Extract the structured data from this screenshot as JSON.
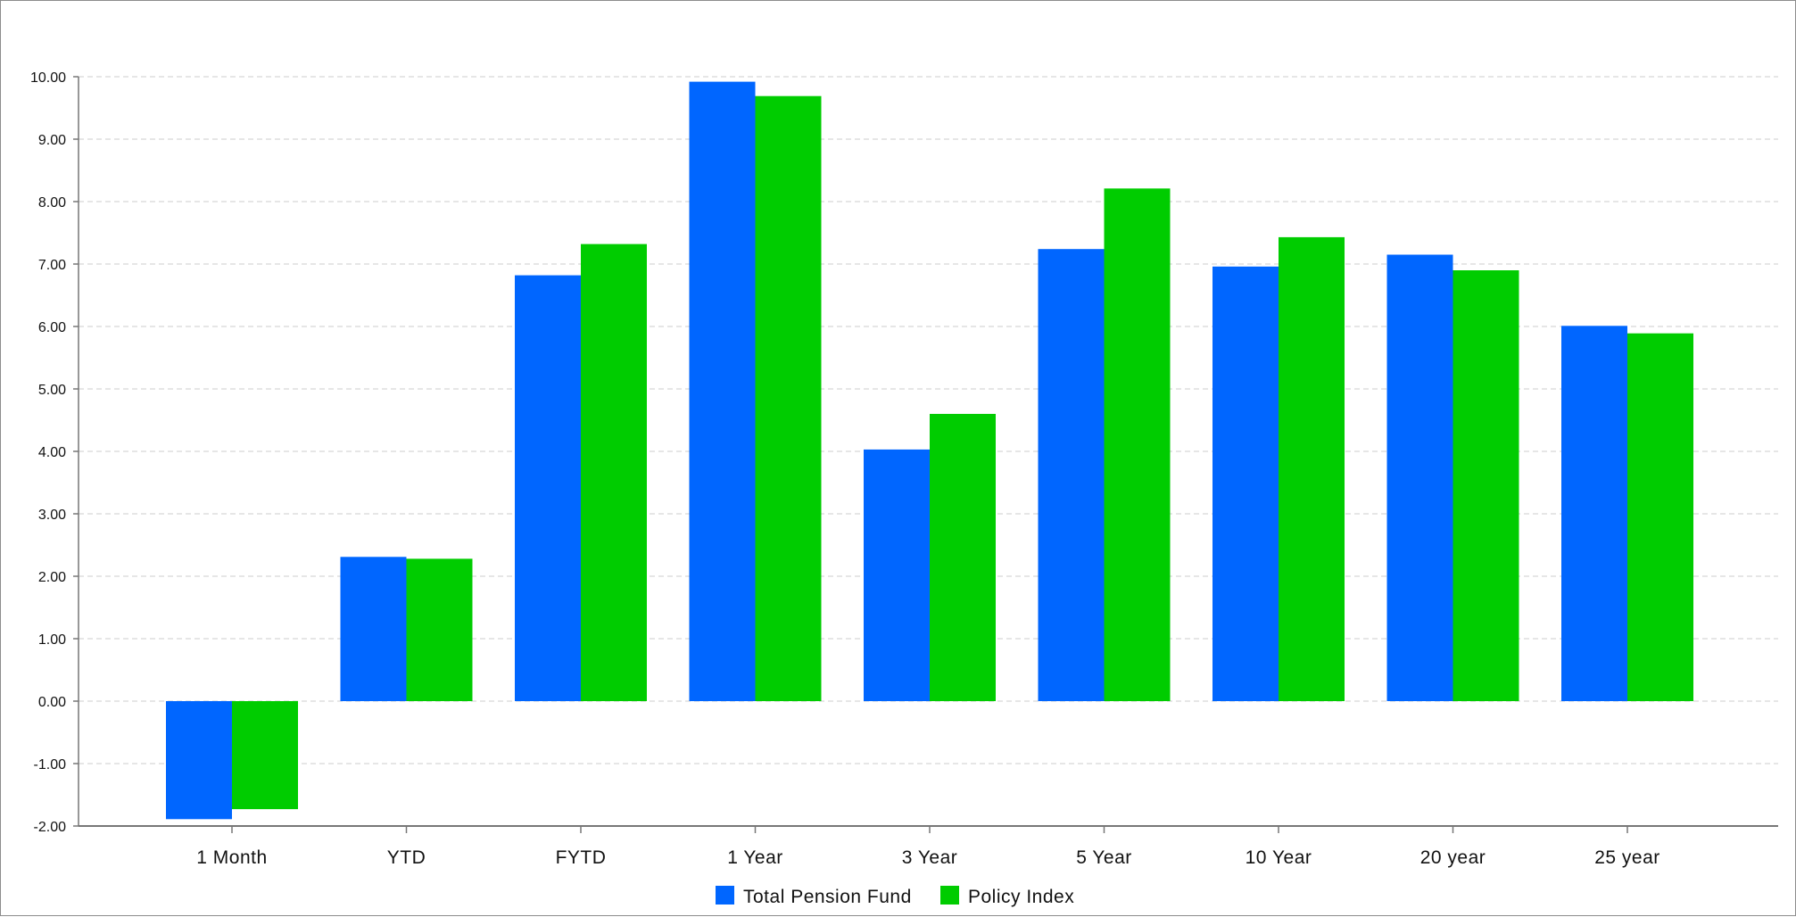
{
  "colors": {
    "series_1": "#0066ff",
    "series_2": "#00cc00",
    "grid": "#cccccc",
    "axis": "#777777",
    "text": "#111111",
    "frame": "#8c8c8c"
  },
  "chart_data": {
    "type": "bar",
    "title": "",
    "xlabel": "",
    "ylabel": "",
    "categories": [
      "1 Month",
      "YTD",
      "FYTD",
      "1 Year",
      "3 Year",
      "5 Year",
      "10 Year",
      "20 year",
      "25 year"
    ],
    "series": [
      {
        "name": "Total Pension Fund",
        "values": [
          -1.89,
          2.31,
          6.82,
          9.92,
          4.03,
          7.24,
          6.96,
          7.15,
          6.01
        ]
      },
      {
        "name": "Policy Index",
        "values": [
          -1.73,
          2.28,
          7.32,
          9.69,
          4.6,
          8.21,
          7.43,
          6.9,
          5.89
        ]
      }
    ],
    "ylim": [
      -2,
      10
    ],
    "yticks": [
      "-2.00",
      "-1.00",
      "0.00",
      "1.00",
      "2.00",
      "3.00",
      "4.00",
      "5.00",
      "6.00",
      "7.00",
      "8.00",
      "9.00",
      "10.00"
    ],
    "grid": true,
    "legend_position": "bottom-center"
  }
}
